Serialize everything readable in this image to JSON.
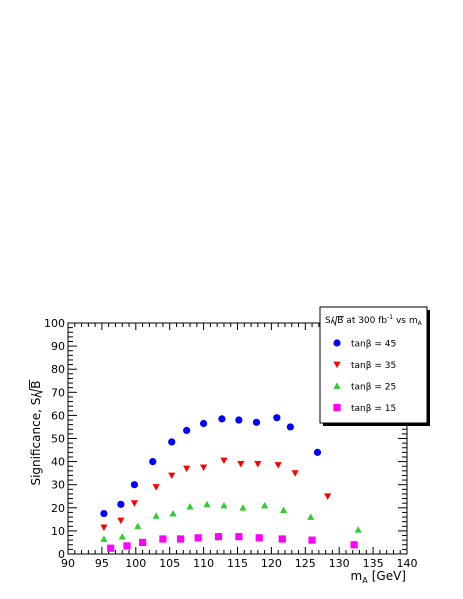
{
  "chart_data": {
    "type": "scatter",
    "xlabel": "m",
    "xlabel_sub": "A",
    "xlabel_unit": "[GeV]",
    "ylabel": "Significance, S/",
    "ylabel_sqrt": "B",
    "xlim": [
      90,
      140
    ],
    "ylim": [
      0,
      100
    ],
    "x_ticks": [
      "90",
      "95",
      "100",
      "105",
      "110",
      "115",
      "120",
      "125",
      "130",
      "135",
      "140"
    ],
    "y_ticks": [
      "0",
      "10",
      "20",
      "30",
      "40",
      "50",
      "60",
      "70",
      "80",
      "90",
      "100"
    ],
    "grid": false,
    "legend_position": "top-right",
    "legend_title": {
      "prefix": "S/",
      "sqrt": "B",
      "middle": " at 300 fb",
      "sup": "-1",
      "vs": " vs m",
      "sub": "A"
    },
    "series": [
      {
        "name": "tanβ = 45",
        "color": "#0000ff",
        "marker": "circle",
        "points": [
          [
            95.3,
            17.5
          ],
          [
            97.8,
            21.5
          ],
          [
            99.8,
            30
          ],
          [
            102.5,
            40
          ],
          [
            105.3,
            48.5
          ],
          [
            107.5,
            53.5
          ],
          [
            110.0,
            56.5
          ],
          [
            112.7,
            58.5
          ],
          [
            115.2,
            58
          ],
          [
            117.8,
            57
          ],
          [
            120.8,
            59
          ],
          [
            122.8,
            55
          ],
          [
            126.8,
            44
          ]
        ]
      },
      {
        "name": "tanβ = 35",
        "color": "#ff0000",
        "marker": "triangle-down",
        "points": [
          [
            95.3,
            11.5
          ],
          [
            97.8,
            14.5
          ],
          [
            99.8,
            22
          ],
          [
            103.0,
            29
          ],
          [
            105.3,
            34
          ],
          [
            107.5,
            37
          ],
          [
            110.0,
            37.5
          ],
          [
            113.0,
            40.5
          ],
          [
            115.5,
            39
          ],
          [
            118.0,
            39
          ],
          [
            121.0,
            38.5
          ],
          [
            123.5,
            35
          ],
          [
            128.3,
            25
          ]
        ]
      },
      {
        "name": "tanβ = 25",
        "color": "#33cc33",
        "marker": "triangle-up",
        "points": [
          [
            95.3,
            6.5
          ],
          [
            98.0,
            7.5
          ],
          [
            100.3,
            12
          ],
          [
            103.0,
            16.5
          ],
          [
            105.5,
            17.5
          ],
          [
            108.0,
            20.5
          ],
          [
            110.5,
            21.5
          ],
          [
            113.0,
            21
          ],
          [
            115.8,
            20
          ],
          [
            119.0,
            21
          ],
          [
            121.8,
            19
          ],
          [
            125.8,
            16
          ],
          [
            132.8,
            10.5
          ]
        ]
      },
      {
        "name": "tanβ = 15",
        "color": "#ff00ff",
        "marker": "square",
        "points": [
          [
            96.3,
            2.5
          ],
          [
            98.7,
            3.5
          ],
          [
            101.0,
            5
          ],
          [
            104.0,
            6.5
          ],
          [
            106.6,
            6.5
          ],
          [
            109.2,
            7
          ],
          [
            112.2,
            7.5
          ],
          [
            115.2,
            7.5
          ],
          [
            118.2,
            7
          ],
          [
            121.6,
            6.5
          ],
          [
            126.0,
            6
          ],
          [
            132.2,
            4
          ]
        ]
      }
    ]
  }
}
